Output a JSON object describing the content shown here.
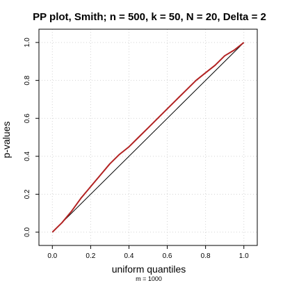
{
  "chart_data": {
    "type": "line",
    "title": "PP plot, Smith; n = 500, k = 50, N = 20, Delta = 2",
    "xlabel": "uniform quantiles",
    "ylabel": "p-values",
    "sublabel": "m = 1000",
    "xlim": [
      -0.07,
      1.07
    ],
    "ylim": [
      -0.07,
      1.07
    ],
    "x_ticks": [
      0.0,
      0.2,
      0.4,
      0.6,
      0.8,
      1.0
    ],
    "x_tick_labels": [
      "0.0",
      "0.2",
      "0.4",
      "0.6",
      "0.8",
      "1.0"
    ],
    "y_ticks": [
      0.0,
      0.2,
      0.4,
      0.6,
      0.8,
      1.0
    ],
    "y_tick_labels": [
      "0.0",
      "0.2",
      "0.4",
      "0.6",
      "0.8",
      "1.0"
    ],
    "grid": true,
    "legend": "none",
    "series": [
      {
        "kind": "reference",
        "color": "#000000",
        "x": [
          0.0,
          1.0
        ],
        "y": [
          0.0,
          1.0
        ]
      },
      {
        "kind": "empirical",
        "color": "#b22222",
        "x": [
          0.0,
          0.02,
          0.05,
          0.1,
          0.15,
          0.2,
          0.25,
          0.3,
          0.35,
          0.4,
          0.45,
          0.5,
          0.55,
          0.6,
          0.65,
          0.7,
          0.75,
          0.8,
          0.85,
          0.9,
          0.95,
          1.0
        ],
        "y": [
          0.0,
          0.02,
          0.05,
          0.11,
          0.18,
          0.24,
          0.3,
          0.36,
          0.41,
          0.45,
          0.5,
          0.55,
          0.6,
          0.65,
          0.7,
          0.75,
          0.8,
          0.84,
          0.88,
          0.93,
          0.96,
          1.0
        ]
      }
    ]
  }
}
